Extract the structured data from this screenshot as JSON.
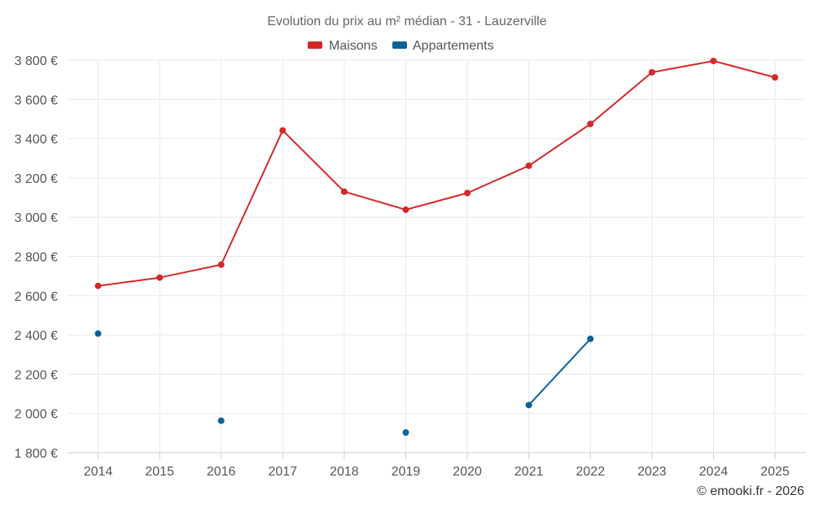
{
  "chart_data": {
    "type": "line",
    "title": "Evolution du prix au m² médian - 31 - Lauzerville",
    "categories": [
      "2014",
      "2015",
      "2016",
      "2017",
      "2018",
      "2019",
      "2020",
      "2021",
      "2022",
      "2023",
      "2024",
      "2025"
    ],
    "series": [
      {
        "name": "Maisons",
        "color": "#d62728",
        "values": [
          2650,
          2692,
          2758,
          3442,
          3130,
          3038,
          3123,
          3262,
          3475,
          3738,
          3796,
          3712
        ]
      },
      {
        "name": "Appartements",
        "color": "#08629a",
        "values": [
          2407,
          null,
          1963,
          null,
          null,
          1903,
          null,
          2043,
          2380,
          null,
          null,
          null
        ]
      }
    ],
    "ylim": [
      1800,
      3800
    ],
    "yticks": [
      1800,
      2000,
      2200,
      2400,
      2600,
      2800,
      3000,
      3200,
      3400,
      3600,
      3800
    ],
    "ytick_labels": [
      "1 800 €",
      "2 000 €",
      "2 200 €",
      "2 400 €",
      "2 600 €",
      "2 800 €",
      "3 000 €",
      "3 200 €",
      "3 400 €",
      "3 600 €",
      "3 800 €"
    ],
    "xlabel": "",
    "ylabel": "",
    "grid": true,
    "legend": "top-center"
  },
  "credit": "© emooki.fr - 2026"
}
